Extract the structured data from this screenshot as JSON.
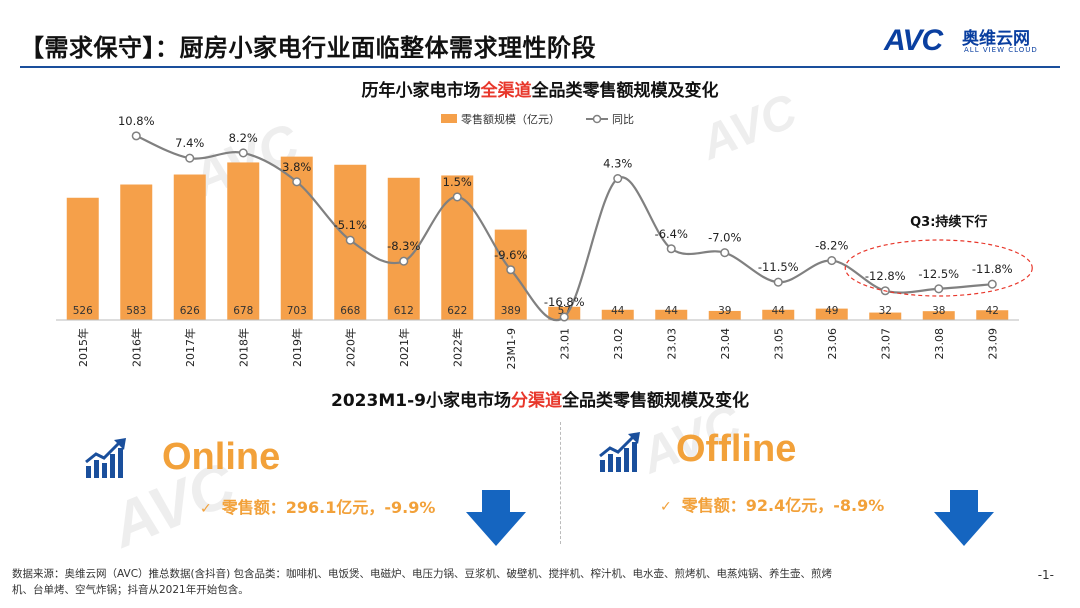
{
  "slide": {
    "title": "【需求保守】：厨房小家电行业面临整体需求理性阶段",
    "page_number": "-1-"
  },
  "logo": {
    "text": "AVC",
    "cn": "奥维云网",
    "sub": "ALL VIEW CLOUD"
  },
  "watermark": {
    "cn": "奥维云网",
    "en": "ALL VIEW CLOUD"
  },
  "chart_title": {
    "prefix": "历年小家电市场",
    "highlight": "全渠道",
    "suffix": "全品类零售额规模及变化"
  },
  "chart_data": {
    "type": "bar",
    "categories": [
      "2015年",
      "2016年",
      "2017年",
      "2018年",
      "2019年",
      "2020年",
      "2021年",
      "2022年",
      "23M1-9",
      "23.01",
      "23.02",
      "23.03",
      "23.04",
      "23.05",
      "23.06",
      "23.07",
      "23.08",
      "23.09"
    ],
    "series": [
      {
        "name": "零售额规模（亿元）",
        "type": "bar",
        "values": [
          526,
          583,
          626,
          678,
          703,
          668,
          612,
          622,
          389,
          57,
          44,
          44,
          39,
          44,
          49,
          32,
          38,
          42
        ],
        "color": "#f5a04a"
      },
      {
        "name": "同比",
        "type": "line",
        "values": [
          null,
          10.8,
          7.4,
          8.2,
          3.8,
          -5.1,
          -8.3,
          1.5,
          -9.6,
          -16.8,
          4.3,
          -6.4,
          -7.0,
          -11.5,
          -8.2,
          -12.8,
          -12.5,
          -11.8
        ],
        "labels": [
          "",
          "10.8%",
          "7.4%",
          "8.2%",
          "3.8%",
          "-5.1%",
          "-8.3%",
          "1.5%",
          "-9.6%",
          "-16.8%",
          "4.3%",
          "-6.4%",
          "-7.0%",
          "-11.5%",
          "-8.2%",
          "-12.8%",
          "-12.5%",
          "-11.8%"
        ],
        "color": "#808080"
      }
    ],
    "annotation": "Q3:持续下行",
    "xlabel": "",
    "ylabel": "",
    "ylim_bar": [
      0,
      710
    ],
    "ylim_line": [
      -20,
      12
    ],
    "grid": false,
    "legend": "top-center"
  },
  "section2_title": {
    "prefix": "2023M1-9小家电市场",
    "highlight": "分渠道",
    "suffix": "全品类零售额规模及变化"
  },
  "online": {
    "label": "Online",
    "stat": "零售额：296.1亿元，-9.9%",
    "tick": "✓"
  },
  "offline": {
    "label": "Offline",
    "stat": "零售额：92.4亿元，-8.9%",
    "tick": "✓"
  },
  "colors": {
    "bar": "#f5a04a",
    "line": "#808080",
    "highlight": "#e8372b",
    "accent": "#1a4f9c",
    "arrow": "#1565c0"
  },
  "footnote": "数据来源：奥维云网（AVC）推总数据(含抖音) 包含品类：咖啡机、电饭煲、电磁炉、电压力锅、豆浆机、破壁机、搅拌机、榨汁机、电水壶、煎烤机、电蒸炖锅、养生壶、煎烤机、台单烤、空气炸锅；抖音从2021年开始包含。"
}
